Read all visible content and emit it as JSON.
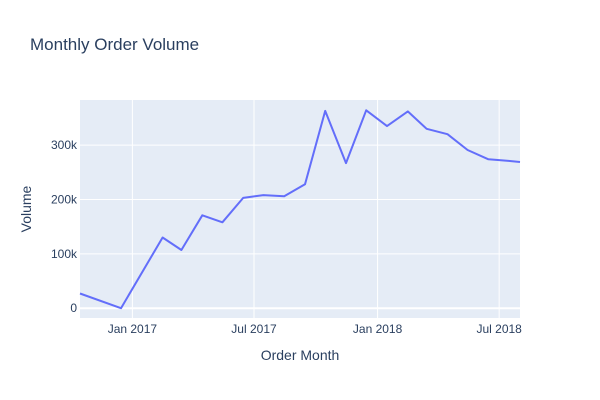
{
  "chart_data": {
    "type": "line",
    "title": "Monthly Order Volume",
    "xlabel": "Order Month",
    "ylabel": "Volume",
    "xlim": [
      "2016-10-15",
      "2018-08-01"
    ],
    "ylim": [
      -18000,
      383000
    ],
    "x_ticks": [
      {
        "date": "2017-01-01",
        "label": "Jan 2017"
      },
      {
        "date": "2017-07-01",
        "label": "Jul 2017"
      },
      {
        "date": "2018-01-01",
        "label": "Jan 2018"
      },
      {
        "date": "2018-07-01",
        "label": "Jul 2018"
      }
    ],
    "y_ticks": [
      {
        "value": 0,
        "label": "0"
      },
      {
        "value": 100000,
        "label": "100k"
      },
      {
        "value": 200000,
        "label": "200k"
      },
      {
        "value": 300000,
        "label": "300k"
      }
    ],
    "grid": true,
    "line_color": "#636efa",
    "series": [
      {
        "x": [
          "2016-10-15",
          "2016-12-15",
          "2017-02-15",
          "2017-03-15",
          "2017-04-15",
          "2017-05-15",
          "2017-06-15",
          "2017-07-15",
          "2017-08-15",
          "2017-09-15",
          "2017-10-15",
          "2017-11-15",
          "2017-12-15",
          "2018-01-15",
          "2018-02-15",
          "2018-03-15",
          "2018-04-15",
          "2018-05-15",
          "2018-06-15",
          "2018-07-15",
          "2018-08-01"
        ],
        "values": [
          27000,
          0,
          130000,
          107000,
          171000,
          158000,
          203000,
          208000,
          206000,
          228000,
          363000,
          267000,
          364000,
          335000,
          362000,
          330000,
          320000,
          291000,
          274000,
          271000,
          269000
        ]
      }
    ]
  }
}
